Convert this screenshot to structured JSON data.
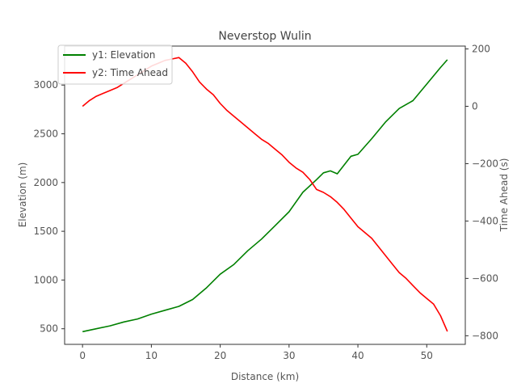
{
  "chart_data": {
    "type": "line",
    "title": "Neverstop Wulin",
    "xlabel": "Distance (km)",
    "ylabel_left": "Elevation (m)",
    "ylabel_right": "Time Ahead (s)",
    "xlim": [
      -2.6,
      55.6
    ],
    "ylim_left": [
      340,
      3400
    ],
    "ylim_right": [
      -830,
      210
    ],
    "x_ticks": [
      0,
      10,
      20,
      30,
      40,
      50
    ],
    "y_left_ticks": [
      500,
      1000,
      1500,
      2000,
      2500,
      3000
    ],
    "y_right_ticks": [
      -800,
      -600,
      -400,
      -200,
      0,
      200
    ],
    "legend_position": "top-left",
    "grid": false,
    "series": [
      {
        "name": "y1: Elevation",
        "axis": "left",
        "color": "#008000",
        "x": [
          0,
          2,
          4,
          6,
          8,
          10,
          12,
          14,
          16,
          18,
          20,
          22,
          24,
          26,
          28,
          30,
          32,
          34,
          35,
          36,
          37,
          38,
          39,
          40,
          42,
          44,
          46,
          48,
          50,
          52,
          53
        ],
        "y": [
          470,
          500,
          530,
          570,
          600,
          650,
          690,
          730,
          800,
          920,
          1060,
          1160,
          1300,
          1420,
          1560,
          1700,
          1900,
          2030,
          2100,
          2120,
          2090,
          2180,
          2270,
          2290,
          2450,
          2620,
          2760,
          2840,
          3010,
          3180,
          3260
        ]
      },
      {
        "name": "y2: Time Ahead",
        "axis": "right",
        "color": "#ff0000",
        "x": [
          0,
          1,
          2,
          3,
          4,
          5,
          6,
          7,
          8,
          9,
          10,
          11,
          12,
          13,
          14,
          15,
          16,
          17,
          18,
          19,
          20,
          21,
          22,
          23,
          24,
          25,
          26,
          27,
          28,
          29,
          30,
          31,
          32,
          33,
          34,
          35,
          36,
          37,
          38,
          39,
          40,
          41,
          42,
          43,
          44,
          45,
          46,
          47,
          48,
          49,
          50,
          51,
          52,
          53
        ],
        "y": [
          0,
          20,
          35,
          45,
          55,
          65,
          80,
          95,
          110,
          125,
          140,
          150,
          160,
          165,
          170,
          150,
          120,
          85,
          60,
          40,
          10,
          -15,
          -35,
          -55,
          -75,
          -95,
          -115,
          -130,
          -150,
          -170,
          -195,
          -215,
          -230,
          -255,
          -290,
          -300,
          -315,
          -335,
          -360,
          -390,
          -420,
          -440,
          -460,
          -490,
          -520,
          -550,
          -580,
          -600,
          -625,
          -650,
          -670,
          -690,
          -730,
          -785
        ]
      }
    ]
  }
}
